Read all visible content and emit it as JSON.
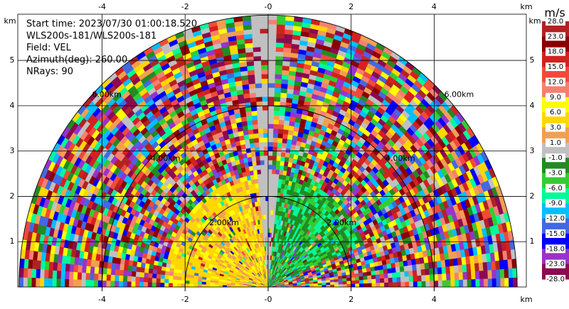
{
  "chart_data": {
    "type": "ppi",
    "annotations": [
      "Start time: 2023/07/30 01:00:18.520",
      "WLS200s-181/WLS200s-181",
      "Field: VEL",
      "Azimuth(deg): 260.00",
      "NRays: 90"
    ],
    "xlabel": "km",
    "ylabel": "km",
    "xlim": [
      -6.03,
      6.22
    ],
    "ylim": [
      0,
      6.02
    ],
    "xticks": [
      -4,
      -2,
      {
        "value": 0,
        "label": "-0"
      },
      2,
      4
    ],
    "yticks": [
      1,
      2,
      3,
      4,
      5
    ],
    "grid": true,
    "rings": [
      {
        "value": 2,
        "label": "2.00km"
      },
      {
        "value": 4,
        "label": "4.00km"
      },
      {
        "value": 6,
        "label": "6.00km"
      }
    ],
    "colorbar": {
      "label": "m/s",
      "ticks": [
        {
          "value": 28,
          "label": "28.0"
        },
        {
          "value": 23,
          "label": "23.0"
        },
        {
          "value": 18,
          "label": "18.0"
        },
        {
          "value": 15,
          "label": "15.0"
        },
        {
          "value": 12,
          "label": "12.0"
        },
        {
          "value": 9,
          "label": "9.0"
        },
        {
          "value": 6,
          "label": "6.0"
        },
        {
          "value": 3,
          "label": "3.0"
        },
        {
          "value": 1,
          "label": "1.0"
        },
        {
          "value": -1,
          "label": "-1.0"
        },
        {
          "value": -3,
          "label": "-3.0"
        },
        {
          "value": -6,
          "label": "-6.0"
        },
        {
          "value": -9,
          "label": "-9.0"
        },
        {
          "value": -12,
          "label": "-12.0"
        },
        {
          "value": -15,
          "label": "-15.0"
        },
        {
          "value": -18,
          "label": "-18.0"
        },
        {
          "value": -23,
          "label": "-23.0"
        },
        {
          "value": -28,
          "label": "-28.0"
        }
      ],
      "colors": [
        "#b22222",
        "#8b0000",
        "#d42020",
        "#f04a3a",
        "#f58070",
        "#ffff00",
        "#ffd700",
        "#f0a050",
        "#c0c0c0",
        "#228b22",
        "#32cd32",
        "#00fa9a",
        "#00bfff",
        "#4169e1",
        "#0000ff",
        "#9932cc",
        "#8b0a50"
      ]
    }
  }
}
